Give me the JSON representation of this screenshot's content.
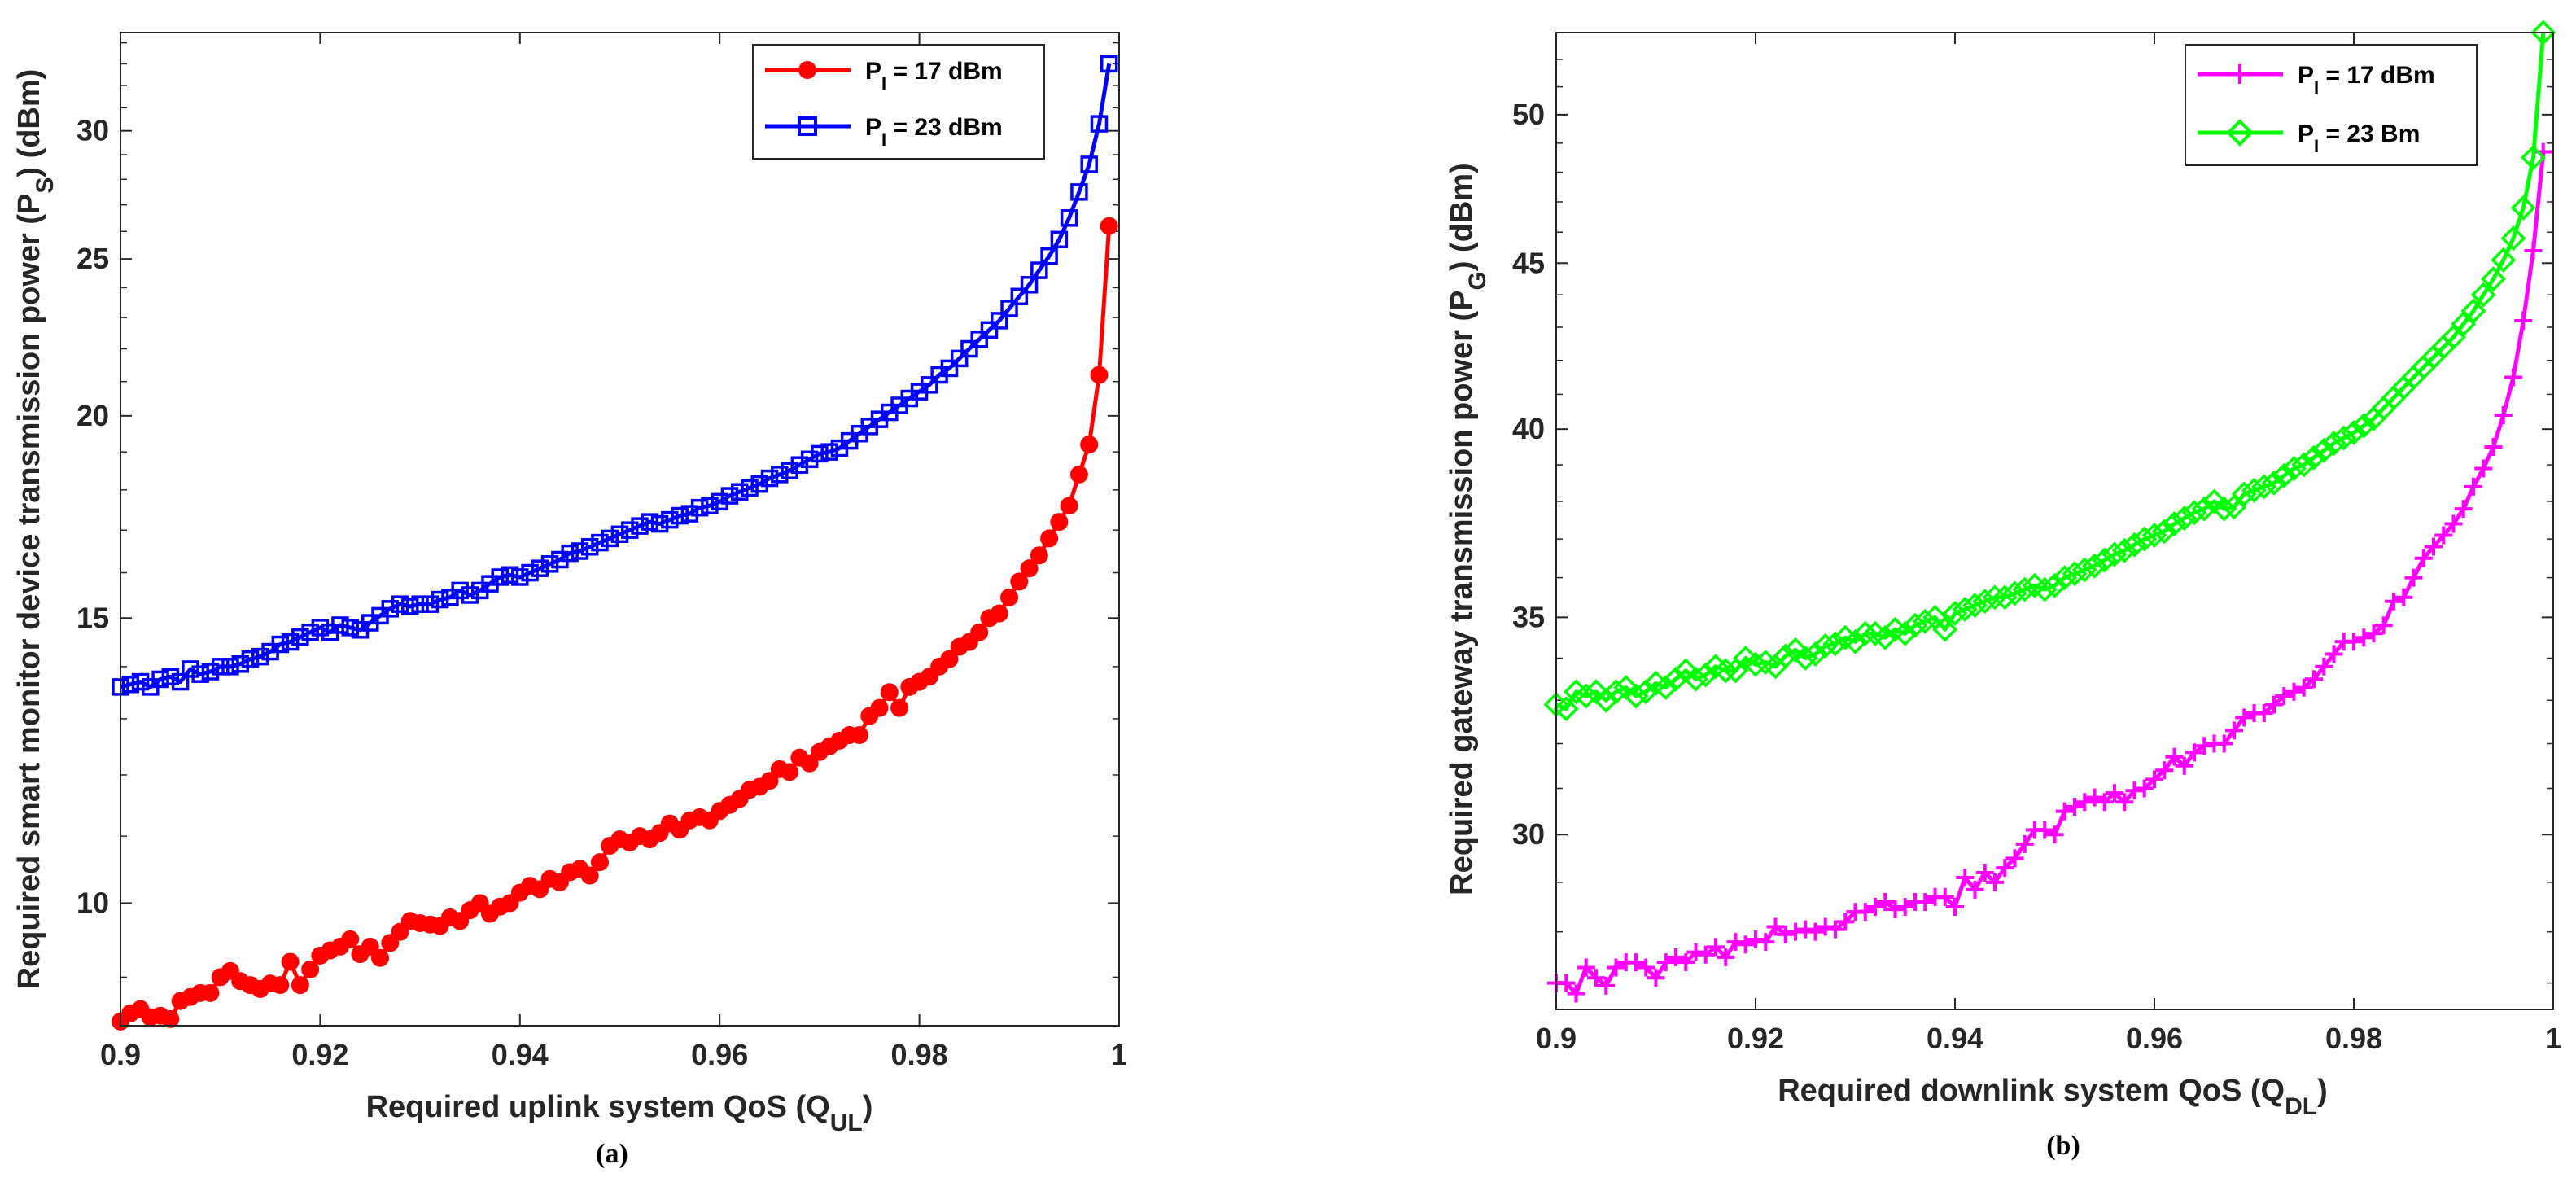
{
  "chart_data": [
    {
      "type": "line",
      "panel": "(a)",
      "xlabel": "Required uplink system QoS (Q",
      "xlabel_sub": "UL",
      "xlabel_end": ")",
      "ylabel": "Required smart monitor device transmission power (P",
      "ylabel_sub": "S",
      "ylabel_end": ") (dBm)",
      "xlim": [
        0.9,
        1.0
      ],
      "ylim": [
        8.4,
        34.5
      ],
      "yscale": "log",
      "xticks": [
        0.9,
        0.92,
        0.94,
        0.96,
        0.98,
        1.0
      ],
      "xtick_labels": [
        "0.9",
        "0.92",
        "0.94",
        "0.96",
        "0.98",
        "1"
      ],
      "yticks": [
        10,
        15,
        20,
        25,
        30
      ],
      "ytick_labels": [
        "10",
        "15",
        "20",
        "25",
        "30"
      ],
      "legend_position": "top-right",
      "series": [
        {
          "name": "17 dBm",
          "legend_main": "P",
          "legend_sub": "I",
          "legend_rest": " = 17 dBm",
          "color": "#ff0000",
          "marker": "circle",
          "x": [
            0.9,
            0.901,
            0.902,
            0.903,
            0.904,
            0.905,
            0.906,
            0.907,
            0.908,
            0.909,
            0.91,
            0.911,
            0.912,
            0.913,
            0.914,
            0.915,
            0.916,
            0.917,
            0.918,
            0.919,
            0.92,
            0.921,
            0.922,
            0.923,
            0.924,
            0.925,
            0.926,
            0.927,
            0.928,
            0.929,
            0.93,
            0.931,
            0.932,
            0.933,
            0.934,
            0.935,
            0.936,
            0.937,
            0.938,
            0.939,
            0.94,
            0.941,
            0.942,
            0.943,
            0.944,
            0.945,
            0.946,
            0.947,
            0.948,
            0.949,
            0.95,
            0.951,
            0.952,
            0.953,
            0.954,
            0.955,
            0.956,
            0.957,
            0.958,
            0.959,
            0.96,
            0.961,
            0.962,
            0.963,
            0.964,
            0.965,
            0.966,
            0.967,
            0.968,
            0.969,
            0.97,
            0.971,
            0.972,
            0.973,
            0.974,
            0.975,
            0.976,
            0.977,
            0.978,
            0.979,
            0.98,
            0.981,
            0.982,
            0.983,
            0.984,
            0.985,
            0.986,
            0.987,
            0.988,
            0.989,
            0.99,
            0.991,
            0.992,
            0.993,
            0.994,
            0.995,
            0.996,
            0.997,
            0.998,
            0.999
          ],
          "y": [
            8.45,
            8.55,
            8.6,
            8.5,
            8.52,
            8.48,
            8.7,
            8.75,
            8.8,
            8.8,
            9.0,
            9.08,
            8.95,
            8.9,
            8.85,
            8.92,
            8.9,
            9.2,
            8.9,
            9.1,
            9.28,
            9.35,
            9.4,
            9.5,
            9.3,
            9.4,
            9.25,
            9.45,
            9.6,
            9.75,
            9.72,
            9.7,
            9.68,
            9.8,
            9.75,
            9.9,
            10.0,
            9.85,
            9.95,
            10.0,
            10.15,
            10.25,
            10.2,
            10.35,
            10.3,
            10.45,
            10.5,
            10.4,
            10.6,
            10.85,
            10.95,
            10.9,
            11.0,
            10.95,
            11.05,
            11.2,
            11.1,
            11.25,
            11.3,
            11.25,
            11.4,
            11.5,
            11.6,
            11.75,
            11.8,
            11.9,
            12.1,
            12.05,
            12.3,
            12.2,
            12.4,
            12.5,
            12.6,
            12.7,
            12.7,
            13.05,
            13.2,
            13.5,
            13.2,
            13.6,
            13.7,
            13.8,
            14.0,
            14.15,
            14.4,
            14.5,
            14.7,
            15.0,
            15.1,
            15.45,
            15.8,
            16.1,
            16.4,
            16.8,
            17.2,
            17.6,
            18.4,
            19.2,
            21.2,
            26.2
          ]
        },
        {
          "name": "23 dBm",
          "legend_main": "P",
          "legend_sub": "I",
          "legend_rest": " = 23 dBm",
          "color": "#0000ff",
          "marker": "square",
          "x": [
            0.9,
            0.901,
            0.902,
            0.903,
            0.904,
            0.905,
            0.906,
            0.907,
            0.908,
            0.909,
            0.91,
            0.911,
            0.912,
            0.913,
            0.914,
            0.915,
            0.916,
            0.917,
            0.918,
            0.919,
            0.92,
            0.921,
            0.922,
            0.923,
            0.924,
            0.925,
            0.926,
            0.927,
            0.928,
            0.929,
            0.93,
            0.931,
            0.932,
            0.933,
            0.934,
            0.935,
            0.936,
            0.937,
            0.938,
            0.939,
            0.94,
            0.941,
            0.942,
            0.943,
            0.944,
            0.945,
            0.946,
            0.947,
            0.948,
            0.949,
            0.95,
            0.951,
            0.952,
            0.953,
            0.954,
            0.955,
            0.956,
            0.957,
            0.958,
            0.959,
            0.96,
            0.961,
            0.962,
            0.963,
            0.964,
            0.965,
            0.966,
            0.967,
            0.968,
            0.969,
            0.97,
            0.971,
            0.972,
            0.973,
            0.974,
            0.975,
            0.976,
            0.977,
            0.978,
            0.979,
            0.98,
            0.981,
            0.982,
            0.983,
            0.984,
            0.985,
            0.986,
            0.987,
            0.988,
            0.989,
            0.99,
            0.991,
            0.992,
            0.993,
            0.994,
            0.995,
            0.996,
            0.997,
            0.998,
            0.999
          ],
          "y": [
            13.6,
            13.65,
            13.7,
            13.6,
            13.75,
            13.8,
            13.7,
            13.95,
            13.85,
            13.9,
            14.0,
            14.0,
            14.05,
            14.15,
            14.2,
            14.3,
            14.45,
            14.5,
            14.6,
            14.7,
            14.8,
            14.7,
            14.85,
            14.8,
            14.75,
            14.9,
            15.05,
            15.2,
            15.3,
            15.25,
            15.3,
            15.3,
            15.4,
            15.45,
            15.6,
            15.5,
            15.6,
            15.75,
            15.9,
            15.95,
            15.9,
            16.0,
            16.1,
            16.2,
            16.3,
            16.45,
            16.5,
            16.6,
            16.7,
            16.8,
            16.9,
            17.0,
            17.1,
            17.2,
            17.15,
            17.25,
            17.35,
            17.4,
            17.55,
            17.6,
            17.7,
            17.85,
            17.95,
            18.05,
            18.15,
            18.3,
            18.4,
            18.5,
            18.65,
            18.8,
            18.95,
            19.0,
            19.1,
            19.3,
            19.5,
            19.7,
            19.9,
            20.1,
            20.3,
            20.5,
            20.7,
            20.9,
            21.2,
            21.4,
            21.7,
            22.0,
            22.3,
            22.6,
            22.9,
            23.3,
            23.7,
            24.1,
            24.6,
            25.1,
            25.7,
            26.5,
            27.5,
            28.6,
            30.3,
            33.0
          ]
        }
      ]
    },
    {
      "type": "line",
      "panel": "(b)",
      "xlabel": "Required downlink system QoS (Q",
      "xlabel_sub": "DL",
      "xlabel_end": ")",
      "ylabel": "Required gateway transmission power (P",
      "ylabel_sub": "G",
      "ylabel_end": ") (dBm)",
      "xlim": [
        0.9,
        1.0
      ],
      "ylim": [
        26.5,
        53.0
      ],
      "yscale": "log",
      "xticks": [
        0.9,
        0.92,
        0.94,
        0.96,
        0.98,
        1.0
      ],
      "xtick_labels": [
        "0.9",
        "0.92",
        "0.94",
        "0.96",
        "0.98",
        "1"
      ],
      "yticks": [
        30,
        35,
        40,
        45,
        50
      ],
      "ytick_labels": [
        "30",
        "35",
        "40",
        "45",
        "50"
      ],
      "legend_position": "top-right",
      "series": [
        {
          "name": "17 dBm",
          "legend_main": "P",
          "legend_sub": "I",
          "legend_rest": " = 17 dBm",
          "color": "#ff00ff",
          "marker": "plus",
          "x": [
            0.9,
            0.901,
            0.902,
            0.903,
            0.904,
            0.905,
            0.906,
            0.907,
            0.908,
            0.909,
            0.91,
            0.911,
            0.912,
            0.913,
            0.914,
            0.915,
            0.916,
            0.917,
            0.918,
            0.919,
            0.92,
            0.921,
            0.922,
            0.923,
            0.924,
            0.925,
            0.926,
            0.927,
            0.928,
            0.929,
            0.93,
            0.931,
            0.932,
            0.933,
            0.934,
            0.935,
            0.936,
            0.937,
            0.938,
            0.939,
            0.94,
            0.941,
            0.942,
            0.943,
            0.944,
            0.945,
            0.946,
            0.947,
            0.948,
            0.949,
            0.95,
            0.951,
            0.952,
            0.953,
            0.954,
            0.955,
            0.956,
            0.957,
            0.958,
            0.959,
            0.96,
            0.961,
            0.962,
            0.963,
            0.964,
            0.965,
            0.966,
            0.967,
            0.968,
            0.969,
            0.97,
            0.971,
            0.972,
            0.973,
            0.974,
            0.975,
            0.976,
            0.977,
            0.978,
            0.979,
            0.98,
            0.981,
            0.982,
            0.983,
            0.984,
            0.985,
            0.986,
            0.987,
            0.988,
            0.989,
            0.99,
            0.991,
            0.992,
            0.993,
            0.994,
            0.995,
            0.996,
            0.997,
            0.998,
            0.999
          ],
          "y": [
            27.0,
            27.0,
            26.8,
            27.3,
            27.1,
            26.95,
            27.3,
            27.4,
            27.4,
            27.3,
            27.1,
            27.4,
            27.5,
            27.4,
            27.6,
            27.55,
            27.7,
            27.5,
            27.8,
            27.75,
            27.85,
            27.8,
            28.1,
            27.95,
            28.0,
            28.05,
            28.0,
            28.1,
            28.05,
            28.2,
            28.4,
            28.4,
            28.5,
            28.6,
            28.45,
            28.5,
            28.6,
            28.6,
            28.7,
            28.7,
            28.5,
            29.1,
            28.85,
            29.2,
            29.0,
            29.3,
            29.5,
            29.8,
            30.1,
            30.1,
            30.0,
            30.5,
            30.6,
            30.7,
            30.8,
            30.7,
            30.9,
            30.7,
            30.95,
            31.0,
            31.2,
            31.4,
            31.7,
            31.5,
            31.8,
            31.95,
            32.0,
            32.0,
            32.3,
            32.6,
            32.7,
            32.7,
            32.9,
            33.1,
            33.2,
            33.3,
            33.5,
            33.8,
            34.1,
            34.4,
            34.4,
            34.5,
            34.6,
            34.8,
            35.4,
            35.5,
            36.0,
            36.5,
            36.8,
            37.1,
            37.4,
            37.8,
            38.4,
            38.9,
            39.5,
            40.4,
            41.5,
            43.2,
            45.4,
            48.7
          ]
        },
        {
          "name": "23 Bm",
          "legend_main": "P",
          "legend_sub": "I",
          "legend_rest": " = 23 Bm",
          "color": "#00ff00",
          "marker": "diamond",
          "x": [
            0.9,
            0.901,
            0.902,
            0.903,
            0.904,
            0.905,
            0.906,
            0.907,
            0.908,
            0.909,
            0.91,
            0.911,
            0.912,
            0.913,
            0.914,
            0.915,
            0.916,
            0.917,
            0.918,
            0.919,
            0.92,
            0.921,
            0.922,
            0.923,
            0.924,
            0.925,
            0.926,
            0.927,
            0.928,
            0.929,
            0.93,
            0.931,
            0.932,
            0.933,
            0.934,
            0.935,
            0.936,
            0.937,
            0.938,
            0.939,
            0.94,
            0.941,
            0.942,
            0.943,
            0.944,
            0.945,
            0.946,
            0.947,
            0.948,
            0.949,
            0.95,
            0.951,
            0.952,
            0.953,
            0.954,
            0.955,
            0.956,
            0.957,
            0.958,
            0.959,
            0.96,
            0.961,
            0.962,
            0.963,
            0.964,
            0.965,
            0.966,
            0.967,
            0.968,
            0.969,
            0.97,
            0.971,
            0.972,
            0.973,
            0.974,
            0.975,
            0.976,
            0.977,
            0.978,
            0.979,
            0.98,
            0.981,
            0.982,
            0.983,
            0.984,
            0.985,
            0.986,
            0.987,
            0.988,
            0.989,
            0.99,
            0.991,
            0.992,
            0.993,
            0.994,
            0.995,
            0.996,
            0.997,
            0.998,
            0.999
          ],
          "y": [
            32.9,
            32.8,
            33.2,
            33.1,
            33.2,
            33.0,
            33.2,
            33.3,
            33.1,
            33.2,
            33.4,
            33.3,
            33.5,
            33.7,
            33.5,
            33.6,
            33.8,
            33.7,
            33.7,
            34.0,
            33.85,
            33.9,
            33.8,
            34.05,
            34.2,
            34.0,
            34.1,
            34.3,
            34.35,
            34.5,
            34.4,
            34.6,
            34.6,
            34.5,
            34.7,
            34.6,
            34.8,
            34.9,
            35.0,
            34.7,
            35.1,
            35.2,
            35.3,
            35.4,
            35.5,
            35.5,
            35.6,
            35.7,
            35.8,
            35.7,
            35.8,
            36.0,
            36.1,
            36.2,
            36.3,
            36.45,
            36.6,
            36.7,
            36.85,
            37.0,
            37.1,
            37.2,
            37.4,
            37.55,
            37.7,
            37.8,
            38.0,
            37.8,
            37.85,
            38.2,
            38.3,
            38.4,
            38.5,
            38.7,
            38.9,
            39.0,
            39.2,
            39.4,
            39.6,
            39.75,
            39.9,
            40.1,
            40.3,
            40.6,
            40.9,
            41.2,
            41.5,
            41.8,
            42.1,
            42.4,
            42.7,
            43.1,
            43.5,
            44.0,
            44.5,
            45.1,
            45.8,
            46.8,
            48.5,
            53.0
          ]
        }
      ]
    }
  ]
}
